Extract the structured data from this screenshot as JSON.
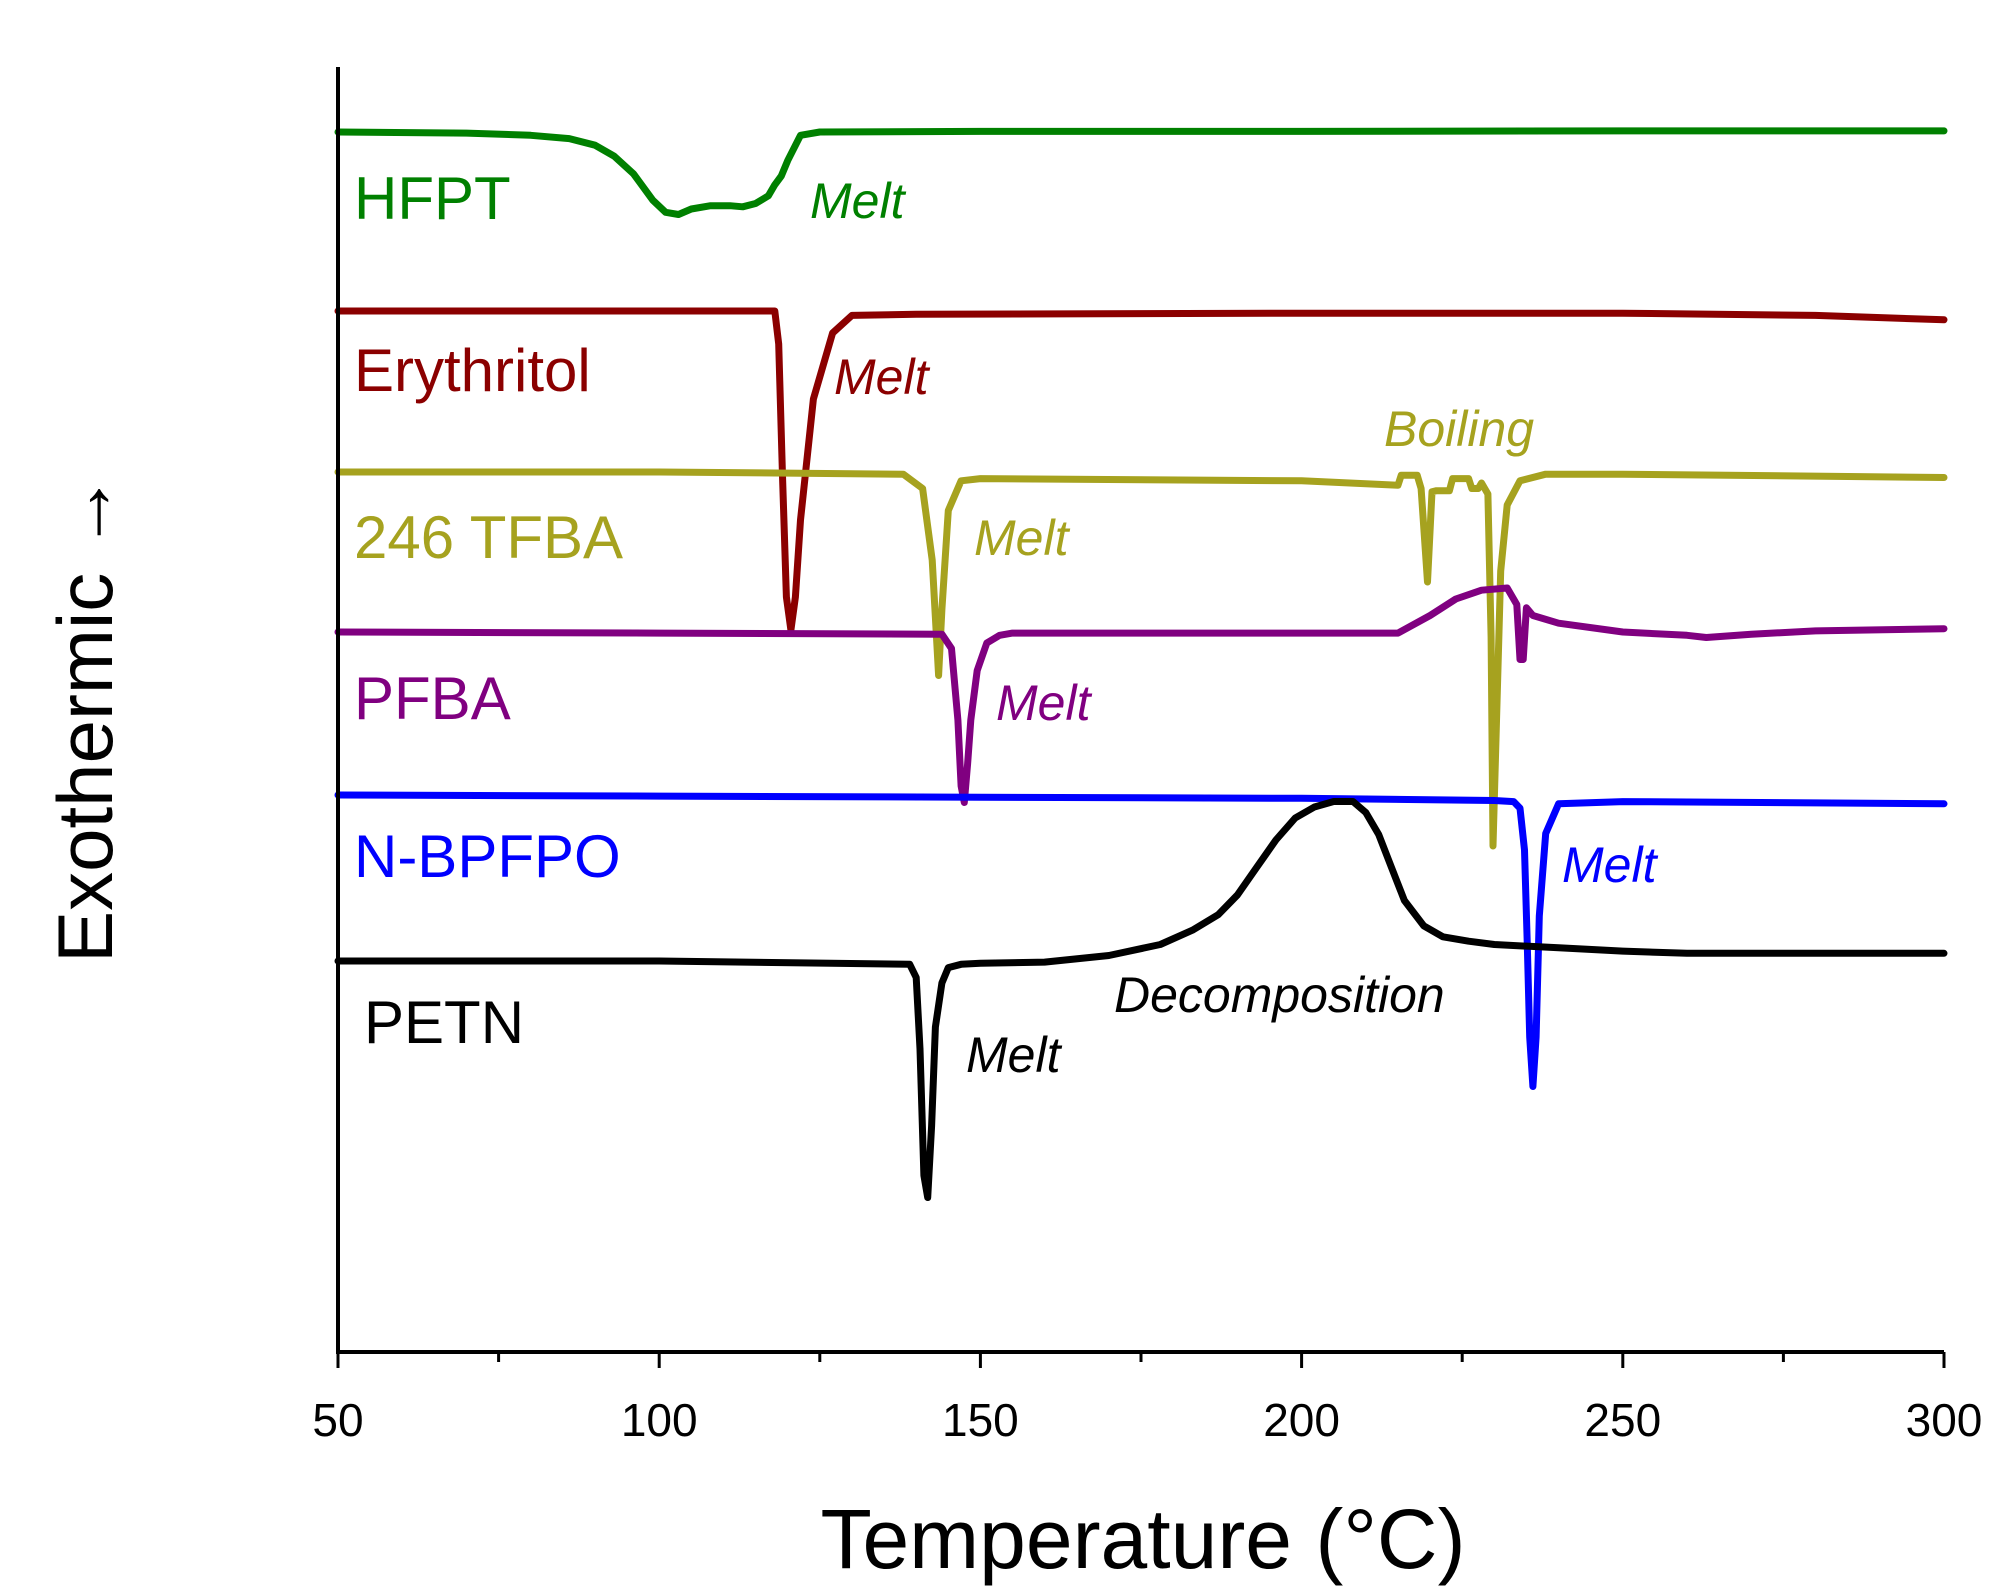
{
  "chart_data": {
    "type": "line",
    "title": "",
    "xlabel": "Temperature (°C)",
    "ylabel": "Exothermic →",
    "xlim": [
      50,
      300
    ],
    "xticks": [
      50,
      100,
      150,
      200,
      250,
      300
    ],
    "grid": false,
    "y_axis_units": "arbitrary (stacked offsets)",
    "series": [
      {
        "name": "HFPT",
        "color": "#008000",
        "x": [
          50,
          70,
          80,
          86,
          90,
          93,
          96,
          99,
          101,
          103,
          105,
          108,
          111,
          113,
          115,
          117,
          118,
          119,
          120,
          122,
          125,
          150,
          200,
          250,
          300
        ],
        "y": [
          0.0,
          -0.01,
          -0.03,
          -0.06,
          -0.12,
          -0.22,
          -0.38,
          -0.62,
          -0.73,
          -0.75,
          -0.7,
          -0.67,
          -0.67,
          -0.68,
          -0.65,
          -0.58,
          -0.48,
          -0.4,
          -0.26,
          -0.03,
          0.0,
          0.005,
          0.005,
          0.01,
          0.01
        ]
      },
      {
        "name": "Erythritol",
        "color": "#8b0000",
        "x": [
          50,
          100,
          118,
          118.6,
          119.2,
          119.8,
          120.5,
          121.2,
          122,
          124,
          127,
          130,
          140,
          200,
          250,
          280,
          300
        ],
        "y": [
          0.0,
          0.0,
          0.0,
          -0.3,
          -1.5,
          -2.6,
          -2.9,
          -2.6,
          -1.9,
          -0.8,
          -0.2,
          -0.04,
          -0.03,
          -0.02,
          -0.02,
          -0.04,
          -0.08
        ]
      },
      {
        "name": "246 TFBA",
        "color": "#a6a21f",
        "x": [
          50,
          100,
          138,
          141,
          142.5,
          143.5,
          144,
          145,
          147,
          150,
          200,
          215,
          215.5,
          218,
          218.6,
          219.6,
          220.3,
          221,
          222,
          223,
          223.5,
          226,
          226.5,
          227.5,
          228,
          229,
          229.5,
          229.8,
          231,
          232,
          234,
          238,
          250,
          300
        ],
        "y": [
          0.0,
          0.0,
          -0.02,
          -0.15,
          -0.8,
          -1.85,
          -1.25,
          -0.35,
          -0.08,
          -0.06,
          -0.08,
          -0.12,
          -0.03,
          -0.03,
          -0.15,
          -1.0,
          -0.18,
          -0.17,
          -0.17,
          -0.17,
          -0.06,
          -0.06,
          -0.15,
          -0.15,
          -0.1,
          -0.2,
          -1.5,
          -3.4,
          -0.9,
          -0.3,
          -0.08,
          -0.02,
          -0.02,
          -0.05
        ]
      },
      {
        "name": "PFBA",
        "color": "#800080",
        "x": [
          50,
          100,
          144,
          145.5,
          146.5,
          147,
          147.5,
          148,
          148.5,
          149.5,
          151,
          153,
          155,
          160,
          200,
          215,
          220,
          224,
          228,
          232,
          233.5,
          234,
          234.5,
          235,
          236,
          240,
          250,
          260,
          263,
          270,
          280,
          300
        ],
        "y": [
          0.0,
          -0.01,
          -0.02,
          -0.15,
          -0.8,
          -1.4,
          -1.55,
          -1.2,
          -0.8,
          -0.35,
          -0.1,
          -0.03,
          -0.01,
          -0.01,
          -0.01,
          -0.01,
          0.15,
          0.3,
          0.38,
          0.4,
          0.25,
          -0.25,
          -0.25,
          0.22,
          0.15,
          0.08,
          0.0,
          -0.03,
          -0.05,
          -0.02,
          0.01,
          0.03
        ]
      },
      {
        "name": "N-BPFPO",
        "color": "#0000ff",
        "x": [
          50,
          100,
          150,
          200,
          230,
          233,
          234,
          234.7,
          235.1,
          235.5,
          236,
          236.5,
          237,
          238,
          240,
          250,
          300
        ],
        "y": [
          0.0,
          -0.01,
          -0.02,
          -0.03,
          -0.05,
          -0.06,
          -0.12,
          -0.5,
          -1.3,
          -2.2,
          -2.65,
          -2.2,
          -1.1,
          -0.35,
          -0.08,
          -0.06,
          -0.08
        ]
      },
      {
        "name": "PETN",
        "color": "#000000",
        "x": [
          50,
          100,
          139,
          140,
          140.6,
          141.2,
          141.8,
          142.4,
          143,
          144,
          145,
          147,
          150,
          160,
          170,
          178,
          183,
          187,
          190,
          193,
          196,
          199,
          202,
          205,
          208,
          210,
          212,
          214,
          216,
          219,
          222,
          226,
          230,
          240,
          250,
          260,
          280,
          300
        ],
        "y": [
          0.0,
          0.0,
          -0.03,
          -0.15,
          -0.8,
          -1.95,
          -2.15,
          -1.5,
          -0.6,
          -0.2,
          -0.06,
          -0.03,
          -0.02,
          -0.01,
          0.05,
          0.15,
          0.28,
          0.42,
          0.6,
          0.85,
          1.1,
          1.3,
          1.4,
          1.45,
          1.45,
          1.35,
          1.15,
          0.85,
          0.55,
          0.32,
          0.22,
          0.18,
          0.15,
          0.12,
          0.09,
          0.07,
          0.07,
          0.07
        ]
      }
    ],
    "labels": [
      {
        "text": "HFPT",
        "series": "HFPT"
      },
      {
        "text": "Erythritol",
        "series": "Erythritol"
      },
      {
        "text": "246 TFBA",
        "series": "246 TFBA"
      },
      {
        "text": "PFBA",
        "series": "PFBA"
      },
      {
        "text": "N-BPFPO",
        "series": "N-BPFPO"
      },
      {
        "text": "PETN",
        "series": "PETN"
      }
    ],
    "annotations": [
      {
        "text": "Melt",
        "series": "HFPT"
      },
      {
        "text": "Melt",
        "series": "Erythritol"
      },
      {
        "text": "Boiling",
        "series": "246 TFBA"
      },
      {
        "text": "Melt",
        "series": "246 TFBA"
      },
      {
        "text": "Melt",
        "series": "PFBA"
      },
      {
        "text": "Melt",
        "series": "N-BPFPO"
      },
      {
        "text": "Decomposition",
        "series": "PETN"
      },
      {
        "text": "Melt",
        "series": "PETN"
      }
    ]
  }
}
